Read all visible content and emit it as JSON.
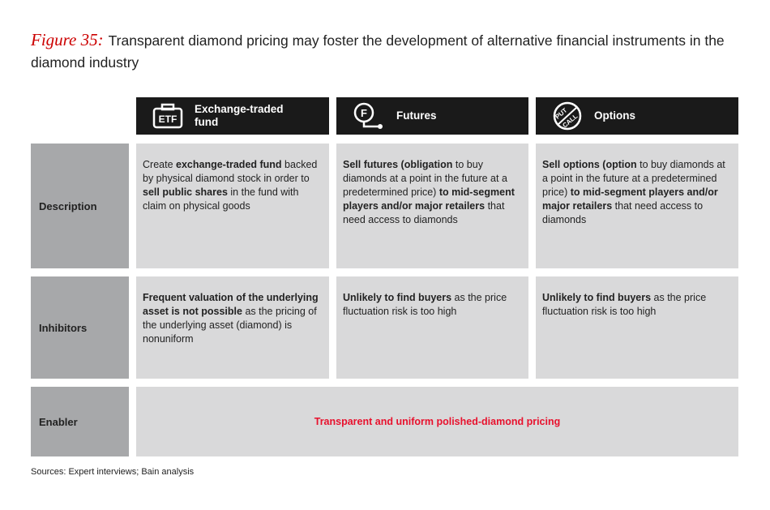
{
  "header": {
    "figure_label": "Figure 35:",
    "title": "Transparent diamond pricing may foster the development of alternative financial instruments in the diamond industry"
  },
  "table": {
    "columns": [
      {
        "icon": [
          "ETF"
        ],
        "label": "Exchange-traded fund"
      },
      {
        "icon": [
          "F"
        ],
        "label": "Futures"
      },
      {
        "icon": [
          "PUT",
          "CALL"
        ],
        "label": "Options"
      }
    ],
    "rows": [
      {
        "label": "Description",
        "cells": [
          [
            {
              "text": "Create "
            },
            {
              "text": "exchange-traded fund",
              "bold": true
            },
            {
              "text": " backed by physical diamond stock in order to "
            },
            {
              "text": "sell public shares",
              "bold": true
            },
            {
              "text": " in the fund with claim on physical goods"
            }
          ],
          [
            {
              "text": "Sell futures (obligation",
              "bold": true
            },
            {
              "text": " to buy diamonds at a point in the future at a predetermined price)"
            },
            {
              "text": " to mid-segment players and/or major retailers",
              "bold": true
            },
            {
              "text": " that need access to diamonds"
            }
          ],
          [
            {
              "text": "Sell options (option",
              "bold": true
            },
            {
              "text": " to buy diamonds at a point in the future at a predetermined price)"
            },
            {
              "text": " to mid-segment players and/or major retailers",
              "bold": true
            },
            {
              "text": " that need access to diamonds"
            }
          ]
        ]
      },
      {
        "label": "Inhibitors",
        "cells": [
          [
            {
              "text": "Frequent valuation of the underlying asset is not possible",
              "bold": true
            },
            {
              "text": " as the pricing of the underlying asset (diamond) is nonuniform"
            }
          ],
          [
            {
              "text": "Unlikely to find buyers",
              "bold": true
            },
            {
              "text": " as the price fluctuation risk is too high"
            }
          ],
          [
            {
              "text": "Unlikely to find buyers",
              "bold": true
            },
            {
              "text": " as the price fluctuation risk is too high"
            }
          ]
        ]
      },
      {
        "label": "Enabler",
        "span": "Transparent and uniform polished-diamond pricing"
      }
    ]
  },
  "source": "Sources: Expert interviews; Bain analysis"
}
